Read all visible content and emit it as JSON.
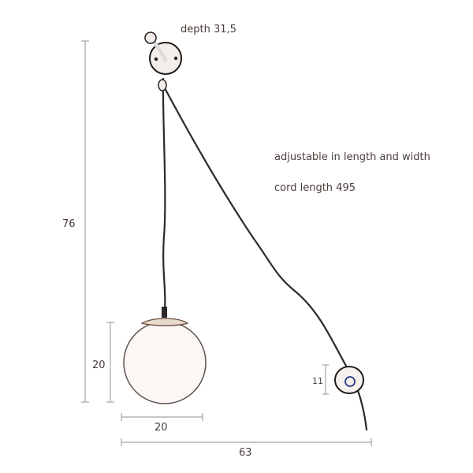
{
  "annotations": {
    "depth": "depth 31,5",
    "adjustable": "adjustable in length and width",
    "cord_length": "cord length 495"
  },
  "dimensions": {
    "total_height": "76",
    "globe_height": "20",
    "globe_width": "20",
    "total_width": "63",
    "switch_height": "11"
  },
  "colors": {
    "text": "#4a3f3c",
    "dimension_line": "#a9a4a0",
    "cord": "#2b2a28"
  }
}
